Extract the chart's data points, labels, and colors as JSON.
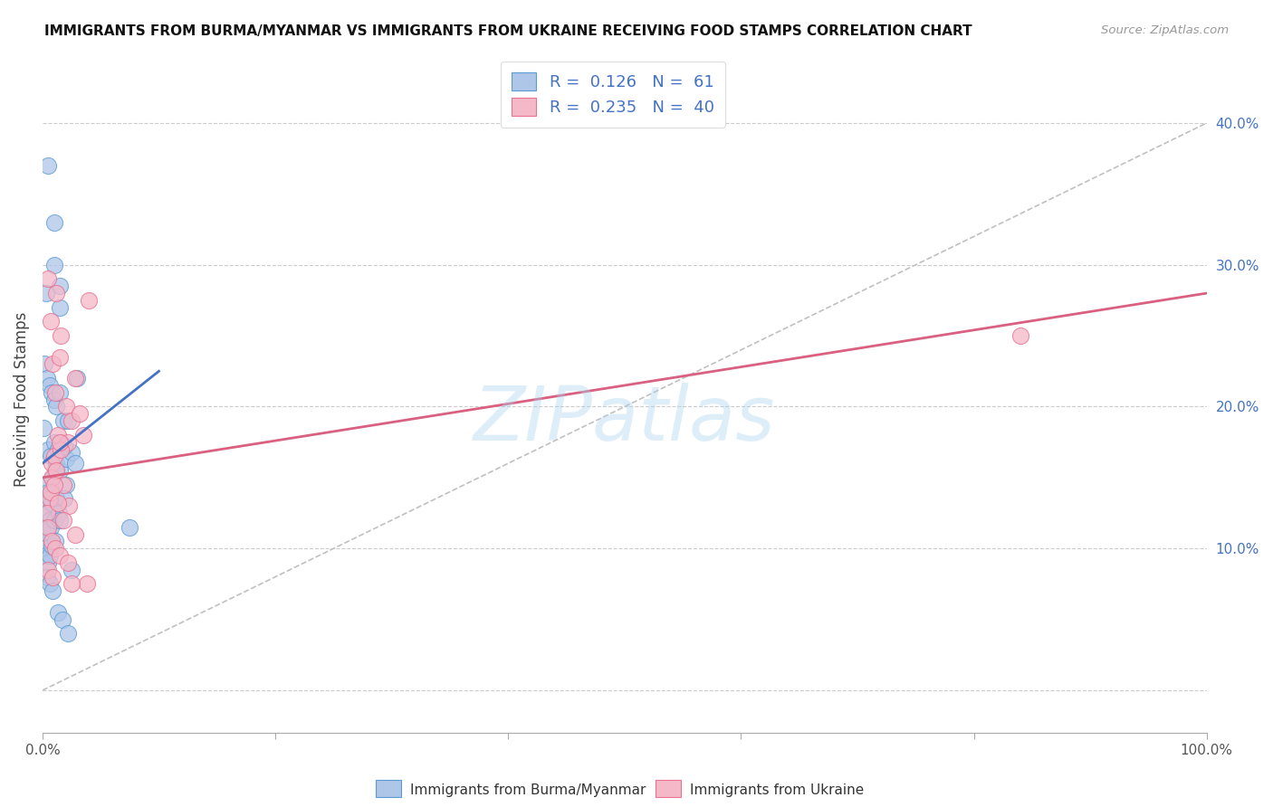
{
  "title": "IMMIGRANTS FROM BURMA/MYANMAR VS IMMIGRANTS FROM UKRAINE RECEIVING FOOD STAMPS CORRELATION CHART",
  "source": "Source: ZipAtlas.com",
  "ylabel": "Receiving Food Stamps",
  "legend_label1": "Immigrants from Burma/Myanmar",
  "legend_label2": "Immigrants from Ukraine",
  "R1": 0.126,
  "N1": 61,
  "R2": 0.235,
  "N2": 40,
  "color_burma_fill": "#aec6e8",
  "color_ukraine_fill": "#f4b8c8",
  "color_burma_edge": "#5b9bd5",
  "color_ukraine_edge": "#e87090",
  "color_burma_line": "#4472c4",
  "color_ukraine_line": "#d96080",
  "color_ref_line": "#c0c0c0",
  "xlim": [
    0.0,
    100.0
  ],
  "ylim": [
    -3.0,
    44.0
  ],
  "right_yticks": [
    0,
    10,
    20,
    30,
    40
  ],
  "right_yticklabels": [
    "",
    "10.0%",
    "20.0%",
    "30.0%",
    "40.0%"
  ],
  "xticks": [
    0,
    20,
    40,
    60,
    80,
    100
  ],
  "xticklabels": [
    "0.0%",
    "",
    "",
    "",
    "",
    "100.0%"
  ],
  "watermark": "ZIPatlas",
  "burma_x": [
    0.5,
    1.0,
    1.0,
    1.5,
    1.5,
    0.3,
    0.5,
    0.7,
    1.0,
    1.2,
    1.5,
    2.0,
    2.5,
    3.0,
    0.2,
    0.4,
    0.6,
    0.8,
    1.0,
    1.2,
    1.5,
    1.8,
    2.2,
    0.1,
    0.3,
    0.5,
    0.7,
    0.9,
    1.1,
    1.3,
    1.6,
    1.9,
    0.2,
    0.4,
    0.6,
    0.8,
    1.2,
    0.2,
    0.4,
    0.5,
    0.7,
    1.0,
    1.4,
    2.0,
    2.8,
    0.1,
    0.3,
    0.5,
    0.6,
    0.8,
    1.1,
    1.5,
    1.9,
    2.5,
    0.4,
    0.6,
    0.9,
    1.3,
    1.7,
    2.2,
    7.5
  ],
  "burma_y": [
    37.0,
    33.0,
    30.0,
    28.5,
    27.0,
    28.0,
    17.0,
    16.5,
    17.5,
    16.0,
    15.5,
    16.3,
    16.8,
    22.0,
    23.0,
    22.0,
    21.5,
    21.0,
    20.5,
    20.0,
    21.0,
    19.0,
    19.0,
    18.5,
    14.5,
    14.0,
    13.5,
    15.0,
    15.5,
    17.0,
    17.5,
    17.2,
    13.0,
    12.5,
    12.0,
    13.2,
    13.5,
    11.5,
    11.2,
    11.0,
    11.5,
    12.0,
    12.5,
    14.5,
    16.0,
    10.0,
    9.5,
    9.0,
    9.5,
    10.2,
    10.5,
    12.0,
    13.5,
    8.5,
    8.0,
    7.5,
    7.0,
    5.5,
    5.0,
    4.0,
    11.5
  ],
  "ukraine_x": [
    1.2,
    1.6,
    2.8,
    4.0,
    0.5,
    0.7,
    0.9,
    1.1,
    1.5,
    2.0,
    2.5,
    0.8,
    1.0,
    1.3,
    1.8,
    2.2,
    3.2,
    0.6,
    0.8,
    1.2,
    1.6,
    2.3,
    3.5,
    0.4,
    0.7,
    1.0,
    1.3,
    1.8,
    2.8,
    0.5,
    0.8,
    1.1,
    1.5,
    2.2,
    3.8,
    0.5,
    0.9,
    1.5,
    2.5,
    84.0
  ],
  "ukraine_y": [
    28.0,
    25.0,
    22.0,
    27.5,
    29.0,
    26.0,
    23.0,
    21.0,
    23.5,
    20.0,
    19.0,
    16.0,
    16.5,
    18.0,
    14.5,
    17.5,
    19.5,
    13.5,
    15.0,
    15.5,
    17.0,
    13.0,
    18.0,
    12.5,
    14.0,
    14.5,
    13.2,
    12.0,
    11.0,
    11.5,
    10.5,
    10.0,
    9.5,
    9.0,
    7.5,
    8.5,
    8.0,
    17.5,
    7.5,
    25.0
  ],
  "burma_trend_x": [
    0,
    10
  ],
  "burma_trend_y": [
    16.0,
    22.5
  ],
  "ukraine_trend_x": [
    0,
    100
  ],
  "ukraine_trend_y": [
    15.0,
    28.0
  ],
  "ref_line_x": [
    0,
    100
  ],
  "ref_line_y": [
    0,
    40
  ]
}
